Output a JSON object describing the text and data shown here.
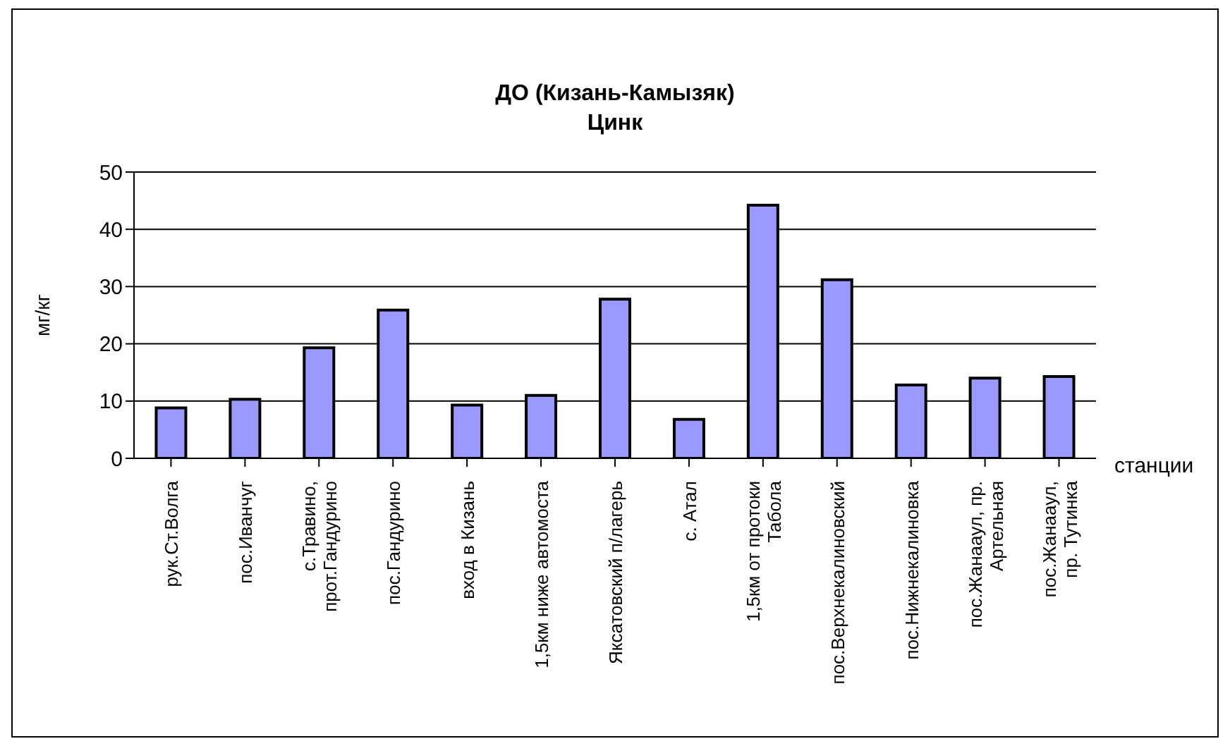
{
  "chart_data": {
    "type": "bar",
    "title": "ДО (Кизань-Камызяк)",
    "subtitle": "Цинк",
    "ylabel": "мг/кг",
    "xlabel": "станции",
    "categories": [
      "рук.Ст.Волга",
      "пос.Иванчуг",
      "с.Травино,\nпрот.Гандурино",
      "пос.Гандурино",
      "вход в Кизань",
      "1,5км ниже автомоста",
      "Яксатовский п/лагерь",
      "с. Атал",
      "1,5км от протоки\nТабола",
      "пос.Верхнекалиновский",
      "пос.Нижнекалиновка",
      "пос.Жанааул, пр.\nАртельная",
      "пос.Жанааул,\nпр. Тутинка"
    ],
    "values": [
      8.8,
      10.3,
      19.3,
      25.9,
      9.3,
      11.0,
      27.8,
      6.8,
      44.2,
      31.2,
      12.8,
      14.0,
      14.3
    ],
    "color": "#9999ff",
    "ylim": [
      0,
      50
    ],
    "yticks": [
      0,
      10,
      20,
      30,
      40,
      50
    ],
    "grid": "y"
  }
}
